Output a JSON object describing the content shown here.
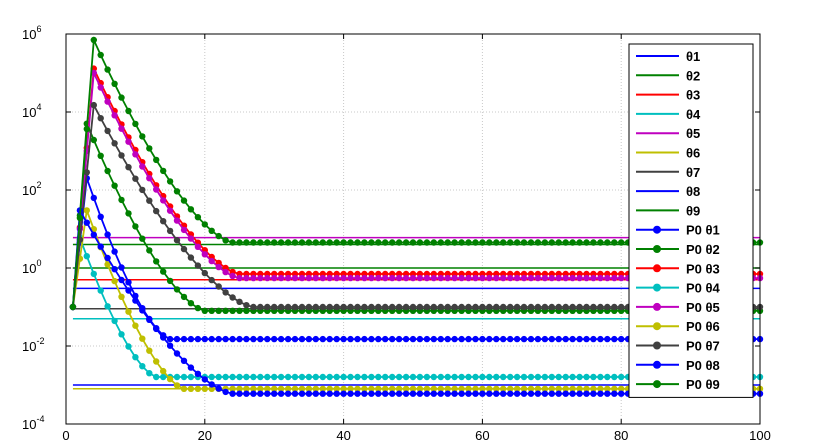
{
  "chart_data": {
    "type": "line",
    "title": "",
    "xlabel": "",
    "ylabel": "",
    "xlim": [
      0,
      100
    ],
    "ylim": [
      0.0001,
      1000000
    ],
    "yscale": "log",
    "grid": true,
    "legend_position": "right",
    "x_ticks": [
      0,
      20,
      40,
      60,
      80,
      100
    ],
    "x_tick_labels": [
      "0",
      "20",
      "40",
      "60",
      "80",
      "100"
    ],
    "y_ticks": [
      0.0001,
      0.01,
      1,
      100,
      10000,
      1000000
    ],
    "y_tick_labels": [
      {
        "base": "10",
        "exp": "-4"
      },
      {
        "base": "10",
        "exp": "-2"
      },
      {
        "base": "10",
        "exp": "0"
      },
      {
        "base": "10",
        "exp": "2"
      },
      {
        "base": "10",
        "exp": "4"
      },
      {
        "base": "10",
        "exp": "6"
      }
    ],
    "reference_series": [
      {
        "name": "θ1",
        "color": "#0000ff",
        "value": 0.3
      },
      {
        "name": "θ2",
        "color": "#008000",
        "value": 1.0
      },
      {
        "name": "θ3",
        "color": "#ff0000",
        "value": 0.5
      },
      {
        "name": "θ4",
        "color": "#00bfbf",
        "value": 0.05
      },
      {
        "name": "θ5",
        "color": "#bf00bf",
        "value": 6.0
      },
      {
        "name": "θ6",
        "color": "#bfbf00",
        "value": 0.0008
      },
      {
        "name": "θ7",
        "color": "#404040",
        "value": 0.09
      },
      {
        "name": "θ8",
        "color": "#0000ff",
        "value": 0.001
      },
      {
        "name": "θ9",
        "color": "#008000",
        "value": 4.0
      }
    ],
    "estimate_series": [
      {
        "name": "P0 θ1",
        "color": "#0000ff",
        "start": 0.1,
        "peak_x": 3,
        "peak": 200,
        "final": 0.015,
        "knee": 15
      },
      {
        "name": "P0 θ2",
        "color": "#008000",
        "start": 0.1,
        "peak_x": 3,
        "peak": 5000,
        "final": 0.08,
        "knee": 20
      },
      {
        "name": "P0 θ3",
        "color": "#ff0000",
        "start": 0.1,
        "peak_x": 4,
        "peak": 130000,
        "final": 0.7,
        "knee": 25
      },
      {
        "name": "P0 θ4",
        "color": "#00bfbf",
        "start": 0.1,
        "peak_x": 2,
        "peak": 6,
        "final": 0.0016,
        "knee": 13
      },
      {
        "name": "P0 θ5",
        "color": "#bf00bf",
        "start": 0.1,
        "peak_x": 4,
        "peak": 100000,
        "final": 0.55,
        "knee": 25
      },
      {
        "name": "P0 θ6",
        "color": "#bfbf00",
        "start": 0.1,
        "peak_x": 3,
        "peak": 30,
        "final": 0.0008,
        "knee": 17
      },
      {
        "name": "P0 θ7",
        "color": "#404040",
        "start": 0.1,
        "peak_x": 4,
        "peak": 15000,
        "final": 0.1,
        "knee": 27
      },
      {
        "name": "P0 θ8",
        "color": "#0000ff",
        "start": 0.1,
        "peak_x": 2,
        "peak": 30,
        "final": 0.0006,
        "knee": 24
      },
      {
        "name": "P0 θ9",
        "color": "#008000",
        "start": 0.1,
        "peak_x": 4,
        "peak": 700000,
        "final": 4.5,
        "knee": 24
      }
    ]
  }
}
